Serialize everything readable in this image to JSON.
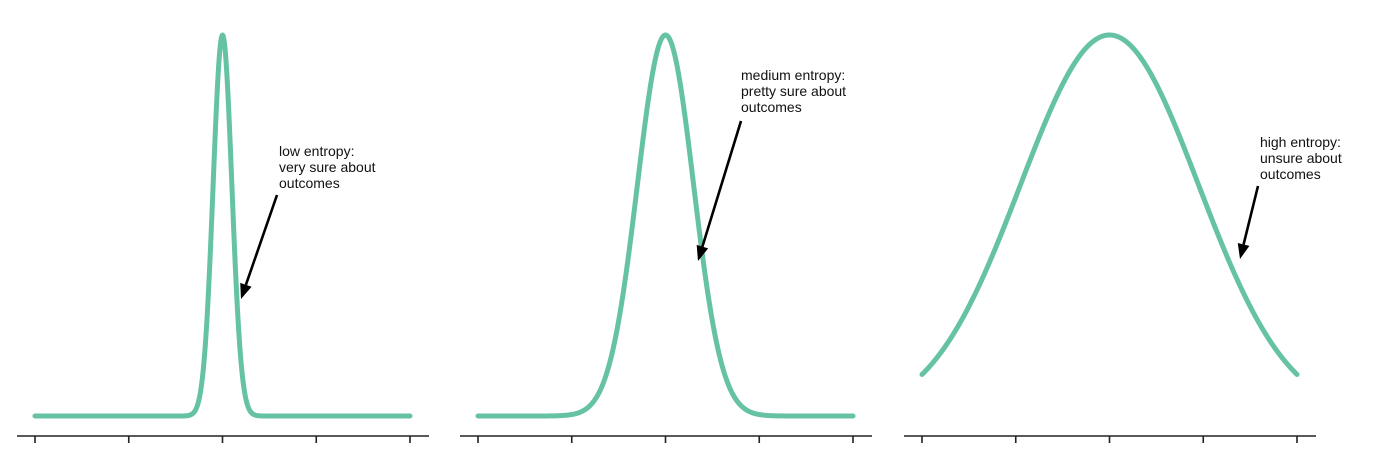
{
  "curve_color": "#66c2a5",
  "axis_color": "#222222",
  "chart_data": [
    {
      "type": "line",
      "series": [
        {
          "x_mean": 0,
          "x_std": 0.1,
          "xlim": [
            -2,
            2
          ],
          "num_ticks": 5
        }
      ],
      "xlim": [
        -2,
        2
      ],
      "ticks": [
        -2,
        -1,
        0,
        1,
        2
      ],
      "tick_labels_visible": false,
      "annotation": {
        "lines": [
          "low entropy:",
          "very sure about",
          "outcomes"
        ]
      }
    },
    {
      "type": "line",
      "series": [
        {
          "x_mean": 0,
          "x_std": 0.3
        }
      ],
      "xlim": [
        -2,
        2
      ],
      "ticks": [
        -2,
        -1,
        0,
        1,
        2
      ],
      "tick_labels_visible": false,
      "annotation": {
        "lines": [
          "medium entropy:",
          "pretty sure about",
          "outcomes"
        ]
      }
    },
    {
      "type": "line",
      "series": [
        {
          "x_mean": 0,
          "x_std": 0.95
        }
      ],
      "xlim": [
        -2,
        2
      ],
      "ticks": [
        -2,
        -1,
        0,
        1,
        2
      ],
      "tick_labels_visible": false,
      "annotation": {
        "lines": [
          "high entropy:",
          "unsure about",
          "outcomes"
        ]
      }
    }
  ]
}
